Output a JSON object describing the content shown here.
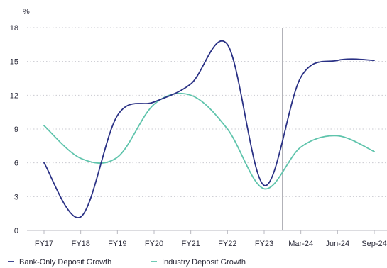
{
  "chart_data": {
    "type": "line",
    "unit": "%",
    "categories": [
      "FY17",
      "FY18",
      "FY19",
      "FY20",
      "FY21",
      "FY22",
      "FY23",
      "Mar-24",
      "Jun-24",
      "Sep-24"
    ],
    "y_ticks": [
      "0",
      "3",
      "6",
      "9",
      "12",
      "15",
      "18"
    ],
    "ylim": [
      0,
      18
    ],
    "grid": "horizontal dotted",
    "legend_position": "bottom-left",
    "divider_between": [
      "FY23",
      "Mar-24"
    ],
    "series": [
      {
        "name": "Bank-Only Deposit Growth",
        "color": "#2a3185",
        "values": [
          6.0,
          1.2,
          10.2,
          11.4,
          13.0,
          16.5,
          4.0,
          13.6,
          15.1,
          15.1
        ]
      },
      {
        "name": "Industry Deposit Growth",
        "color": "#5fc4ac",
        "values": [
          9.3,
          6.4,
          6.5,
          11.2,
          12.0,
          9.0,
          3.7,
          7.4,
          8.4,
          7.0
        ]
      }
    ]
  }
}
